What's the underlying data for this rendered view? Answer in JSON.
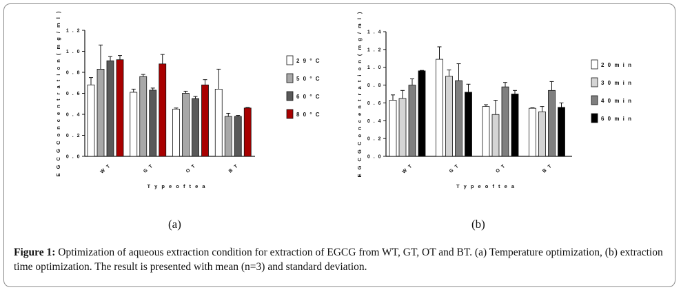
{
  "figure": {
    "panel_a_label": "(a)",
    "panel_b_label": "(b)",
    "caption_bold": "Figure 1:",
    "caption_text": " Optimization of aqueous extraction condition for extraction of EGCG from WT, GT, OT and BT. (a) Temperature optimization, (b) extraction time optimization. The result is presented with mean (n=3) and standard deviation."
  },
  "chart_data": [
    {
      "type": "bar",
      "ylabel": "E G C G  C o n c e n t r a t i o n  ( m g / m l )",
      "xlabel": "T y p e  o f  t e a",
      "categories": [
        "W T",
        "G T",
        "O T",
        "B T"
      ],
      "ylim": [
        0,
        1.2
      ],
      "yticks": [
        "0 . 0",
        "0 . 2",
        "0 . 4",
        "0 . 6",
        "0 . 8",
        "1 . 0",
        "1 . 2"
      ],
      "ytick_values": [
        0,
        0.2,
        0.4,
        0.6,
        0.8,
        1.0,
        1.2
      ],
      "legend_position": "right",
      "series": [
        {
          "name": "2 9 ° C",
          "color": "#ffffff",
          "values": [
            0.68,
            0.61,
            0.45,
            0.64
          ],
          "errors": [
            0.07,
            0.03,
            0.01,
            0.19
          ]
        },
        {
          "name": "5 0 ° C",
          "color": "#a8a8a8",
          "values": [
            0.83,
            0.76,
            0.6,
            0.38
          ],
          "errors": [
            0.23,
            0.02,
            0.02,
            0.03
          ]
        },
        {
          "name": "6 0 ° C",
          "color": "#595959",
          "values": [
            0.91,
            0.63,
            0.55,
            0.38
          ],
          "errors": [
            0.04,
            0.02,
            0.02,
            0.01
          ]
        },
        {
          "name": "8 0 ° C",
          "color": "#a80000",
          "values": [
            0.92,
            0.88,
            0.68,
            0.46
          ],
          "errors": [
            0.04,
            0.09,
            0.05,
            0.005
          ]
        }
      ]
    },
    {
      "type": "bar",
      "ylabel": "E G C G  C o n c e n t r a t i o n  ( m g / m l )",
      "xlabel": "T y p e  o f  t e a",
      "categories": [
        "W T",
        "G T",
        "O T",
        "B T"
      ],
      "ylim": [
        0,
        1.4
      ],
      "yticks": [
        "0 . 0",
        "0 . 2",
        "0 . 4",
        "0 . 6",
        "0 . 8",
        "1 . 0",
        "1 . 2",
        "1 . 4"
      ],
      "ytick_values": [
        0,
        0.2,
        0.4,
        0.6,
        0.8,
        1.0,
        1.2,
        1.4
      ],
      "legend_position": "right",
      "series": [
        {
          "name": "2 0  m i n",
          "color": "#ffffff",
          "values": [
            0.63,
            1.09,
            0.56,
            0.54
          ],
          "errors": [
            0.06,
            0.14,
            0.02,
            0.005
          ]
        },
        {
          "name": "3 0  m i n",
          "color": "#d4d4d4",
          "values": [
            0.65,
            0.9,
            0.47,
            0.5
          ],
          "errors": [
            0.09,
            0.07,
            0.16,
            0.06
          ]
        },
        {
          "name": "4 0  m i n",
          "color": "#7f7f7f",
          "values": [
            0.8,
            0.85,
            0.78,
            0.74
          ],
          "errors": [
            0.07,
            0.19,
            0.05,
            0.1
          ]
        },
        {
          "name": "6 0  m i n",
          "color": "#000000",
          "values": [
            0.96,
            0.72,
            0.7,
            0.55
          ],
          "errors": [
            0.005,
            0.09,
            0.04,
            0.05
          ]
        }
      ]
    }
  ]
}
